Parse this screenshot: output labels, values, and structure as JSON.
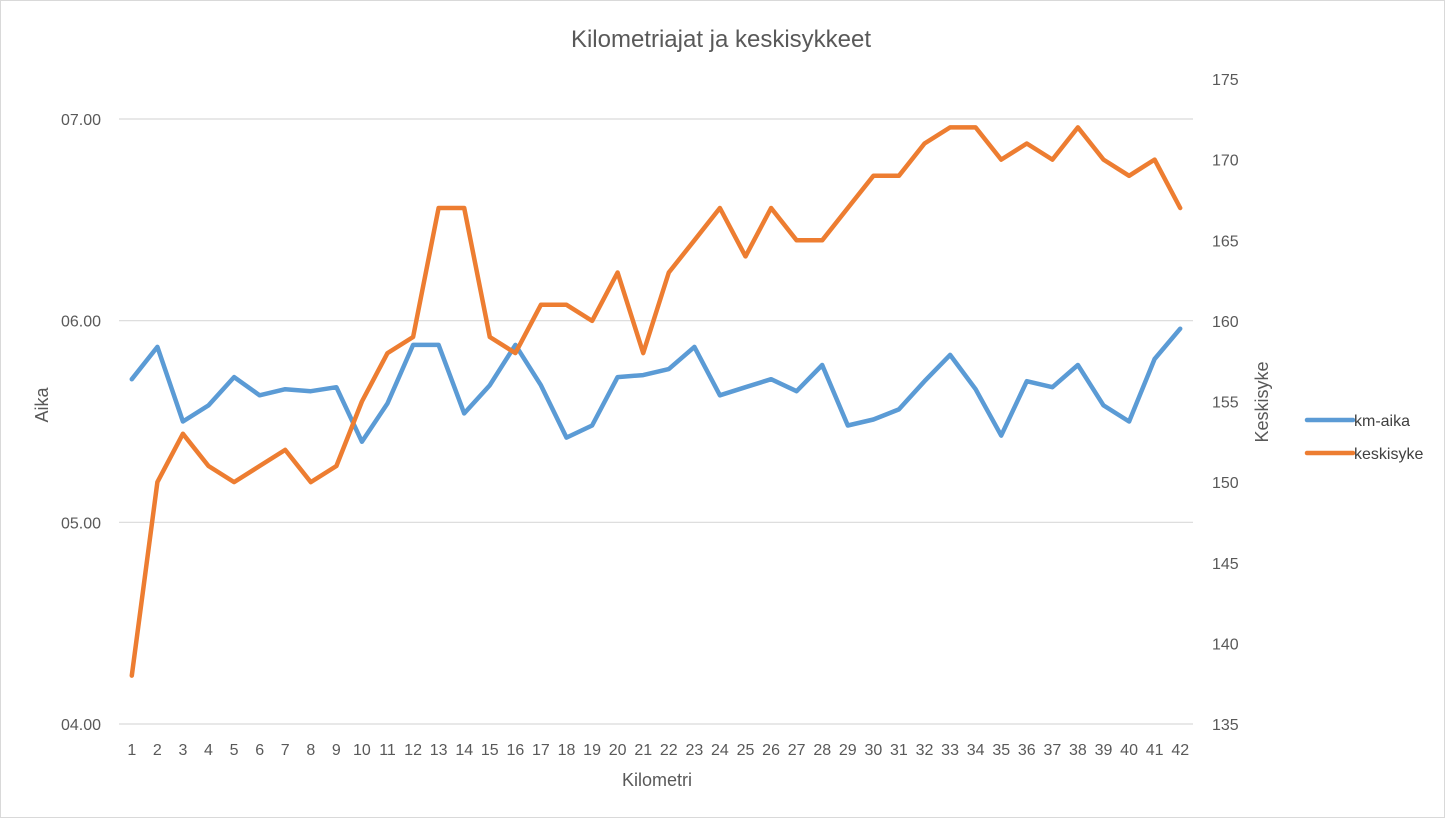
{
  "chart_data": {
    "type": "line",
    "title": "Kilometriajat ja keskisykkeet",
    "xlabel": "Kilometri",
    "ylabel": "Aika",
    "y2label": "Keskisyke",
    "x": [
      "1",
      "2",
      "3",
      "4",
      "5",
      "6",
      "7",
      "8",
      "9",
      "10",
      "11",
      "12",
      "13",
      "14",
      "15",
      "16",
      "17",
      "18",
      "19",
      "20",
      "21",
      "22",
      "23",
      "24",
      "25",
      "26",
      "27",
      "28",
      "29",
      "30",
      "31",
      "32",
      "33",
      "34",
      "35",
      "36",
      "37",
      "38",
      "39",
      "40",
      "41",
      "42"
    ],
    "y_axis": {
      "min": 4.0,
      "max": 7.0,
      "ticks": [
        4.0,
        5.0,
        6.0,
        7.0
      ],
      "tick_labels": [
        "04.00",
        "05.00",
        "06.00",
        "07.00"
      ]
    },
    "y2_axis": {
      "min": 135,
      "max": 175,
      "ticks": [
        135,
        140,
        145,
        150,
        155,
        160,
        165,
        170,
        175
      ],
      "tick_labels": [
        "135",
        "140",
        "145",
        "150",
        "155",
        "160",
        "165",
        "170",
        "175"
      ]
    },
    "gridlines": true,
    "legend": "right",
    "series": [
      {
        "name": "km-aika",
        "axis": "left",
        "color": "#5B9BD5",
        "values": [
          5.71,
          5.87,
          5.5,
          5.58,
          5.72,
          5.63,
          5.66,
          5.65,
          5.67,
          5.4,
          5.59,
          5.88,
          5.88,
          5.54,
          5.68,
          5.88,
          5.68,
          5.42,
          5.48,
          5.72,
          5.73,
          5.76,
          5.87,
          5.63,
          5.67,
          5.71,
          5.65,
          5.78,
          5.48,
          5.51,
          5.56,
          5.7,
          5.83,
          5.66,
          5.43,
          5.7,
          5.67,
          5.78,
          5.58,
          5.5,
          5.81,
          5.96
        ]
      },
      {
        "name": "keskisyke",
        "axis": "right",
        "color": "#ED7D31",
        "values": [
          138,
          150,
          153,
          151,
          150,
          151,
          152,
          150,
          151,
          155,
          158,
          159,
          167,
          167,
          159,
          158,
          161,
          161,
          160,
          163,
          158,
          163,
          165,
          167,
          164,
          167,
          165,
          165,
          167,
          169,
          169,
          171,
          172,
          172,
          170,
          171,
          170,
          172,
          170,
          169,
          170,
          167
        ]
      }
    ]
  }
}
